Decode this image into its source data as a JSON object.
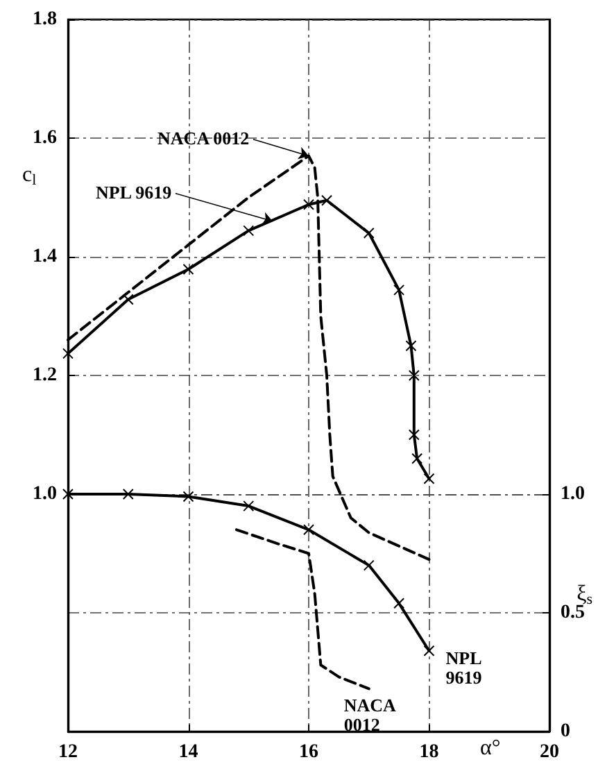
{
  "chart_data": {
    "type": "line",
    "xlabel": "α°",
    "ylabel": "c$_{l}$",
    "y2label": "ξ$_{s}$",
    "xlim": [
      12,
      20
    ],
    "xticks": [
      12,
      14,
      16,
      18,
      20
    ],
    "ylim": [
      0.6,
      1.8
    ],
    "yticks": [
      {
        "value": 1.0,
        "label": "1.0"
      },
      {
        "value": 1.2,
        "label": "1.2"
      },
      {
        "value": 1.4,
        "label": "1.4"
      },
      {
        "value": 1.6,
        "label": "1.6"
      },
      {
        "value": 1.8,
        "label": "1.8"
      }
    ],
    "y2lim": [
      0,
      3.0
    ],
    "y2ticks": [
      0,
      0.5,
      {
        "value": 1.0,
        "label": "1.0"
      }
    ],
    "grid": true,
    "series": [
      {
        "color": "#000000",
        "line_style": "dashed",
        "marker": "none",
        "x": [
          12,
          13,
          14,
          15,
          16,
          16.1,
          16.15,
          16.2,
          16.3,
          16.35,
          16.4,
          16.7,
          17.0,
          18.0
        ],
        "values": [
          1.26,
          1.34,
          1.42,
          1.5,
          1.57,
          1.55,
          1.5,
          1.3,
          1.2,
          1.1,
          1.03,
          0.96,
          0.935,
          0.89
        ]
      },
      {
        "color": "#000000",
        "line_style": "solid",
        "marker": "cross",
        "x": [
          12,
          13,
          14,
          15,
          16,
          16.3,
          17,
          17.5,
          17.7,
          17.75,
          17.75,
          17.8,
          18
        ],
        "values": [
          1.237,
          1.328,
          1.379,
          1.444,
          1.488,
          1.495,
          1.44,
          1.344,
          1.25,
          1.2,
          1.1,
          1.06,
          1.026
        ]
      },
      {
        "color": "#000000",
        "line_style": "solid",
        "marker": "cross",
        "axis": "y2",
        "x": [
          12,
          13,
          14,
          15,
          16,
          17,
          17.5,
          18
        ],
        "values": [
          1.0,
          1.0,
          0.99,
          0.95,
          0.85,
          0.7,
          0.54,
          0.34
        ]
      },
      {
        "color": "#000000",
        "line_style": "dashed",
        "marker": "none",
        "axis": "y2",
        "x": [
          14.8,
          15.5,
          16.0,
          16.1,
          16.2,
          16.5,
          17.0
        ],
        "values": [
          0.85,
          0.79,
          0.75,
          0.58,
          0.28,
          0.23,
          0.18
        ]
      }
    ],
    "annotations": [
      {
        "text": "NACA 0012",
        "x": 16,
        "y": 1.57
      },
      {
        "text": "NPL 9619",
        "x": 15.4,
        "y": 1.46
      },
      {
        "text": "NPL\n9619",
        "x": 18,
        "y": 0.74
      },
      {
        "text": "NACA\n0012",
        "x": 17.0,
        "y": 0.675
      }
    ]
  }
}
